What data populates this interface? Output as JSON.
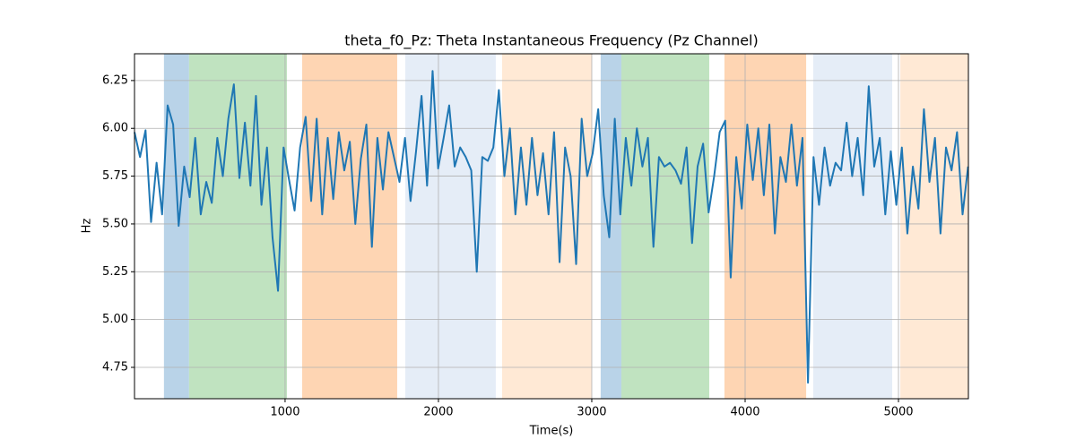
{
  "chart_data": {
    "type": "line",
    "title": "theta_f0_Pz: Theta Instantaneous Frequency (Pz Channel)",
    "xlabel": "Time(s)",
    "ylabel": "Hz",
    "xlim": [
      18,
      5456
    ],
    "ylim": [
      4.586,
      6.39
    ],
    "xticks": [
      1000,
      2000,
      3000,
      4000,
      5000
    ],
    "yticks": [
      4.75,
      {
        "value": 5.0,
        "label": "5.00"
      },
      5.25,
      {
        "value": 5.5,
        "label": "5.50"
      },
      5.75,
      {
        "value": 6.0,
        "label": "6.00"
      },
      6.25
    ],
    "grid": true,
    "spans": [
      {
        "start": 210,
        "end": 374,
        "color": "#b9d3e8"
      },
      {
        "start": 374,
        "end": 1012,
        "color": "#c0e3c0"
      },
      {
        "start": 1111,
        "end": 1731,
        "color": "#fed5b3"
      },
      {
        "start": 1784,
        "end": 2374,
        "color": "#e5edf7"
      },
      {
        "start": 2415,
        "end": 3000,
        "color": "#ffe9d5"
      },
      {
        "start": 3058,
        "end": 3193,
        "color": "#b9d3e8"
      },
      {
        "start": 3193,
        "end": 3766,
        "color": "#c0e3c0"
      },
      {
        "start": 3865,
        "end": 4398,
        "color": "#fed5b3"
      },
      {
        "start": 4444,
        "end": 4959,
        "color": "#e5edf7"
      },
      {
        "start": 5012,
        "end": 5456,
        "color": "#ffe9d5"
      }
    ],
    "series": [
      {
        "color": "#1f77b4",
        "x": [
          18,
          54,
          90,
          126,
          162,
          198,
          234,
          270,
          306,
          342,
          378,
          414,
          450,
          486,
          522,
          558,
          594,
          630,
          666,
          702,
          738,
          774,
          810,
          846,
          882,
          918,
          954,
          990,
          1026,
          1062,
          1098,
          1134,
          1170,
          1206,
          1242,
          1278,
          1314,
          1350,
          1386,
          1422,
          1458,
          1494,
          1530,
          1566,
          1602,
          1638,
          1674,
          1710,
          1746,
          1782,
          1818,
          1854,
          1890,
          1926,
          1962,
          1998,
          2034,
          2070,
          2106,
          2142,
          2178,
          2214,
          2250,
          2286,
          2322,
          2358,
          2394,
          2430,
          2466,
          2502,
          2538,
          2574,
          2610,
          2646,
          2682,
          2718,
          2754,
          2790,
          2826,
          2862,
          2898,
          2934,
          2970,
          3006,
          3042,
          3078,
          3114,
          3150,
          3186,
          3222,
          3258,
          3294,
          3330,
          3366,
          3402,
          3438,
          3474,
          3510,
          3546,
          3582,
          3618,
          3654,
          3690,
          3726,
          3762,
          3798,
          3834,
          3870,
          3906,
          3942,
          3978,
          4014,
          4050,
          4086,
          4122,
          4158,
          4194,
          4230,
          4266,
          4302,
          4338,
          4374,
          4410,
          4446,
          4482,
          4518,
          4554,
          4590,
          4626,
          4662,
          4698,
          4734,
          4770,
          4806,
          4842,
          4878,
          4914,
          4950,
          4986,
          5022,
          5058,
          5094,
          5130,
          5166,
          5202,
          5238,
          5274,
          5310,
          5346,
          5382,
          5418,
          5454
        ],
        "values": [
          5.98,
          5.85,
          5.99,
          5.51,
          5.82,
          5.55,
          6.12,
          6.02,
          5.49,
          5.8,
          5.64,
          5.95,
          5.55,
          5.72,
          5.61,
          5.95,
          5.75,
          6.05,
          6.23,
          5.74,
          6.03,
          5.7,
          6.17,
          5.6,
          5.9,
          5.43,
          5.15,
          5.9,
          5.73,
          5.57,
          5.9,
          6.06,
          5.62,
          6.05,
          5.55,
          5.95,
          5.63,
          5.98,
          5.78,
          5.93,
          5.5,
          5.84,
          6.02,
          5.38,
          5.95,
          5.68,
          5.98,
          5.85,
          5.72,
          5.95,
          5.62,
          5.88,
          6.17,
          5.7,
          6.3,
          5.79,
          5.95,
          6.12,
          5.8,
          5.9,
          5.85,
          5.78,
          5.25,
          5.85,
          5.83,
          5.9,
          6.2,
          5.75,
          6.0,
          5.55,
          5.9,
          5.6,
          5.95,
          5.65,
          5.87,
          5.55,
          5.98,
          5.3,
          5.9,
          5.75,
          5.29,
          6.05,
          5.75,
          5.87,
          6.1,
          5.65,
          5.43,
          6.05,
          5.55,
          5.95,
          5.7,
          6.0,
          5.8,
          5.95,
          5.38,
          5.85,
          5.8,
          5.82,
          5.78,
          5.71,
          5.9,
          5.4,
          5.8,
          5.92,
          5.56,
          5.75,
          5.98,
          6.04,
          5.22,
          5.85,
          5.58,
          6.02,
          5.73,
          6.0,
          5.65,
          6.02,
          5.45,
          5.85,
          5.72,
          6.02,
          5.7,
          5.95,
          4.67,
          5.85,
          5.6,
          5.9,
          5.7,
          5.82,
          5.78,
          6.03,
          5.75,
          5.95,
          5.65,
          6.22,
          5.8,
          5.95,
          5.55,
          5.88,
          5.6,
          5.9,
          5.45,
          5.8,
          5.58,
          6.1,
          5.72,
          5.95,
          5.45,
          5.9,
          5.78,
          5.98,
          5.55,
          5.8
        ]
      }
    ]
  }
}
